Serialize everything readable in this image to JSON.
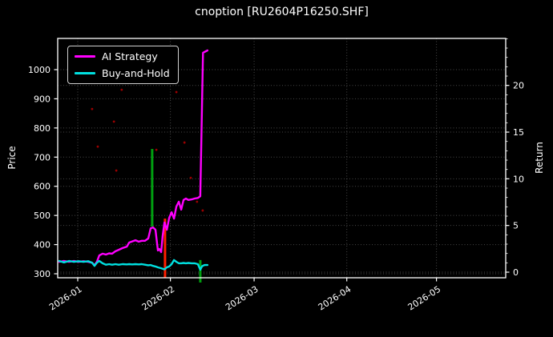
{
  "chart_data": {
    "type": "line",
    "title": "cnoption [RU2604P16250.SHF]",
    "background_color": "#000000",
    "grid": true,
    "grid_style": "dotted",
    "legend_position": "upper-left",
    "x_axis": {
      "unit": "days since 2026-01-01",
      "tick_days": [
        0,
        31,
        59,
        90,
        120
      ],
      "tick_labels": [
        "2026-01",
        "2026-02",
        "2026-03",
        "2026-04",
        "2026-05"
      ],
      "xlim_days": [
        -6.8,
        143.2
      ]
    },
    "price_axis": {
      "label": "Price",
      "ticks": [
        300,
        400,
        500,
        600,
        700,
        800,
        900,
        1000
      ],
      "ylim": [
        286,
        1107
      ]
    },
    "return_axis": {
      "label": "Return",
      "ticks": [
        0,
        5,
        10,
        15,
        20
      ],
      "minor_tick_step": 1,
      "ylim": [
        -0.6,
        25.0
      ]
    },
    "series": [
      {
        "name": "AI Strategy",
        "color": "#ff00ff",
        "axis": "price",
        "points": [
          [
            -6.2,
            341
          ],
          [
            -4.6,
            344
          ],
          [
            -2.9,
            341
          ],
          [
            -1.3,
            344
          ],
          [
            0.3,
            341
          ],
          [
            1.9,
            343
          ],
          [
            3.5,
            341
          ],
          [
            4.8,
            338
          ],
          [
            5.6,
            329
          ],
          [
            6.4,
            341
          ],
          [
            7.2,
            363
          ],
          [
            8.3,
            369
          ],
          [
            9.4,
            366
          ],
          [
            10.5,
            370
          ],
          [
            11.5,
            369
          ],
          [
            12.6,
            377
          ],
          [
            13.7,
            382
          ],
          [
            15,
            388
          ],
          [
            16.4,
            393
          ],
          [
            17.2,
            407
          ],
          [
            18.2,
            411
          ],
          [
            19.3,
            415
          ],
          [
            20.4,
            410
          ],
          [
            21.4,
            413
          ],
          [
            22.5,
            413
          ],
          [
            23.6,
            421
          ],
          [
            24.4,
            456
          ],
          [
            25.2,
            459
          ],
          [
            26,
            451
          ],
          [
            26.8,
            380
          ],
          [
            27.3,
            385
          ],
          [
            27.9,
            374
          ],
          [
            28.4,
            429
          ],
          [
            29,
            476
          ],
          [
            29.8,
            451
          ],
          [
            30.6,
            492
          ],
          [
            31.4,
            511
          ],
          [
            32.2,
            489
          ],
          [
            33,
            531
          ],
          [
            33.8,
            547
          ],
          [
            34.6,
            520
          ],
          [
            35.4,
            553
          ],
          [
            36.2,
            558
          ],
          [
            37,
            553
          ],
          [
            38.1,
            555
          ],
          [
            39.1,
            558
          ],
          [
            40.2,
            560
          ],
          [
            41,
            566
          ],
          [
            41.9,
            1058
          ],
          [
            43.4,
            1066
          ]
        ]
      },
      {
        "name": "Buy-and-Hold",
        "color": "#00e0e0",
        "axis": "price",
        "points": [
          [
            -6.2,
            344
          ],
          [
            -4.6,
            339
          ],
          [
            -2.9,
            344
          ],
          [
            -1.3,
            341
          ],
          [
            0.3,
            343
          ],
          [
            1.9,
            341
          ],
          [
            3.5,
            343
          ],
          [
            4.8,
            338
          ],
          [
            5.6,
            327
          ],
          [
            6.4,
            338
          ],
          [
            7.2,
            344
          ],
          [
            8.3,
            336
          ],
          [
            9.4,
            331
          ],
          [
            10.5,
            333
          ],
          [
            11.5,
            331
          ],
          [
            12.6,
            333
          ],
          [
            13.7,
            331
          ],
          [
            15,
            333
          ],
          [
            16.4,
            332
          ],
          [
            17.2,
            333
          ],
          [
            18.2,
            332
          ],
          [
            19.3,
            333
          ],
          [
            20.4,
            332
          ],
          [
            21.4,
            333
          ],
          [
            22.5,
            331
          ],
          [
            23.6,
            329
          ],
          [
            24.4,
            330
          ],
          [
            25.2,
            327
          ],
          [
            26,
            325
          ],
          [
            26.8,
            322
          ],
          [
            27.9,
            319
          ],
          [
            29,
            315
          ],
          [
            29.8,
            322
          ],
          [
            30.6,
            325
          ],
          [
            31.4,
            333
          ],
          [
            32.2,
            347
          ],
          [
            33,
            341
          ],
          [
            33.8,
            336
          ],
          [
            34.6,
            336
          ],
          [
            35.4,
            337
          ],
          [
            36.2,
            336
          ],
          [
            37,
            337
          ],
          [
            38.1,
            336
          ],
          [
            39.1,
            336
          ],
          [
            40.2,
            333
          ],
          [
            41,
            314
          ],
          [
            41.6,
            326
          ],
          [
            42.4,
            330
          ],
          [
            43.4,
            330
          ]
        ]
      }
    ],
    "signal_bars": [
      {
        "day": 24.9,
        "price_from": 462,
        "price_to": 728,
        "color": "#00a010",
        "meaning": "buy-signal"
      },
      {
        "day": 29.2,
        "price_from": 286,
        "price_to": 489,
        "color": "#ff1e00",
        "meaning": "sell-signal"
      },
      {
        "day": 41.0,
        "price_from": 270,
        "price_to": 347,
        "color": "#00a010",
        "meaning": "buy-signal"
      }
    ],
    "scatter_points": {
      "color": "#9b0000",
      "points": [
        [
          4.8,
          865
        ],
        [
          14.7,
          931
        ],
        [
          33.0,
          923
        ],
        [
          12.1,
          822
        ],
        [
          6.7,
          736
        ],
        [
          35.7,
          750
        ],
        [
          12.9,
          654
        ],
        [
          26.3,
          725
        ],
        [
          37.8,
          629
        ],
        [
          39.9,
          547
        ],
        [
          41.8,
          517
        ]
      ]
    }
  },
  "style": {
    "grid_color": "rgba(255,255,255,0.28)",
    "border_color": "#ffffff",
    "tick_text_color": "#ffffff"
  }
}
